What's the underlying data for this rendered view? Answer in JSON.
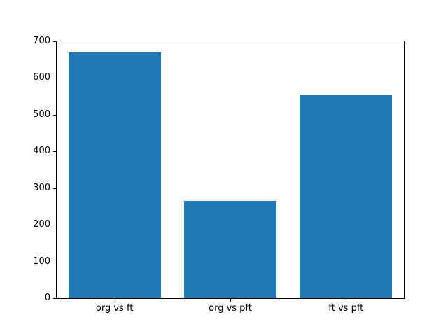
{
  "chart_data": {
    "type": "bar",
    "categories": [
      "org vs ft",
      "org vs pft",
      "ft vs pft"
    ],
    "values": [
      670,
      265,
      553
    ],
    "title": "",
    "xlabel": "",
    "ylabel": "",
    "ylim": [
      0,
      700
    ],
    "yticks": [
      0,
      100,
      200,
      300,
      400,
      500,
      600,
      700
    ],
    "bar_color": "#1f77b4",
    "bar_width_fraction": 0.8,
    "grid": false,
    "legend": "none"
  }
}
